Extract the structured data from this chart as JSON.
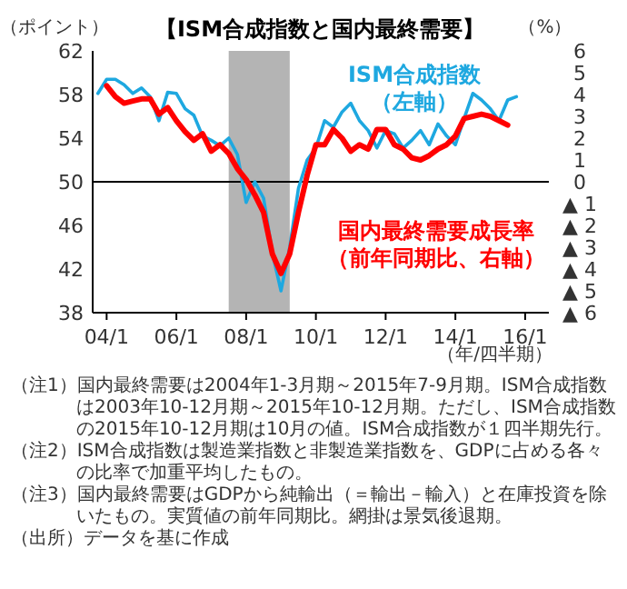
{
  "chart_data": {
    "type": "line",
    "title": "【ISM合成指数と国内最終需要】",
    "ylabel": "（ポイント）",
    "y2label": "（%）",
    "xlabel": "（年/四半期）",
    "categories": [
      null,
      "04/1",
      null,
      null,
      null,
      null,
      null,
      null,
      null,
      "06/1",
      null,
      null,
      null,
      null,
      null,
      null,
      null,
      "08/1",
      null,
      null,
      null,
      null,
      null,
      null,
      null,
      "10/1",
      null,
      null,
      null,
      null,
      null,
      null,
      null,
      "12/1",
      null,
      null,
      null,
      null,
      null,
      null,
      null,
      "14/1",
      null,
      null,
      null,
      null,
      null,
      null,
      null,
      "16/1",
      null,
      null
    ],
    "ylim": [
      38,
      62
    ],
    "y2lim": [
      -6,
      6
    ],
    "yticks": [
      38,
      42,
      46,
      50,
      54,
      58,
      62
    ],
    "y2ticks": [
      6,
      5,
      4,
      3,
      2,
      1,
      0,
      {
        "value": -1,
        "label": "▲ 1"
      },
      {
        "value": -2,
        "label": "▲ 2"
      },
      {
        "value": -3,
        "label": "▲ 3"
      },
      {
        "value": -4,
        "label": "▲ 4"
      },
      {
        "value": -5,
        "label": "▲ 5"
      },
      {
        "value": -6,
        "label": "▲ 6"
      }
    ],
    "ref_lines": [
      {
        "axis": "y",
        "value": 50,
        "color": "#000000"
      }
    ],
    "series": [
      {
        "name": "ISM合成指数（左軸）",
        "color": "#1ea8e0",
        "values": [
          58.1,
          59.4,
          59.4,
          58.9,
          58.1,
          58.6,
          57.8,
          55.6,
          58.2,
          58.1,
          56.7,
          56.1,
          54.2,
          53.8,
          53.3,
          54.0,
          52.5,
          48.1,
          50.0,
          48.5,
          43.5,
          40.0,
          44.0,
          49.4,
          52.0,
          53.1,
          55.6,
          55.0,
          56.4,
          57.2,
          55.6,
          54.7,
          53.1,
          54.7,
          54.4,
          53.1,
          53.8,
          54.7,
          53.4,
          55.3,
          54.2,
          53.4,
          55.8,
          58.1,
          57.5,
          56.7,
          55.6,
          57.5,
          57.8,
          null,
          null,
          null
        ]
      },
      {
        "name": "国内最終需要成長率（前年同期比、右軸）",
        "color": "#ff0000",
        "axis": "y2",
        "values": [
          null,
          4.4,
          3.9,
          3.6,
          3.7,
          3.8,
          3.8,
          3.1,
          3.4,
          2.8,
          2.3,
          1.9,
          2.2,
          1.4,
          1.7,
          1.3,
          0.6,
          0.1,
          -0.6,
          -1.4,
          -3.3,
          -4.2,
          -3.3,
          -1.4,
          0.3,
          1.7,
          1.7,
          2.4,
          2.0,
          1.4,
          1.7,
          1.5,
          2.4,
          2.4,
          1.7,
          1.5,
          1.1,
          1.0,
          1.2,
          1.5,
          1.7,
          2.1,
          2.9,
          3.0,
          3.1,
          3.0,
          2.8,
          2.6,
          null,
          null,
          null,
          null
        ]
      }
    ],
    "annotations": [
      "（注1）国内最終需要は2004年1-3月期～2015年7-9月期。ISM合成指数は2003年10-12月期～2015年10-12月期。ただし、ISM合成指数の2015年10-12月期は10月の値。ISM合成指数が１四半期先行。",
      "（注2）ISM合成指数は製造業指数と非製造業指数を、GDPに占める各々の比率で加重平均したもの。",
      "（注3）国内最終需要はGDPから純輸出（＝輸出－輸入）と在庫投資を除いたもの。実質値の前年同期比。網掛は景気後退期。",
      "（出所）データを基に作成"
    ]
  }
}
